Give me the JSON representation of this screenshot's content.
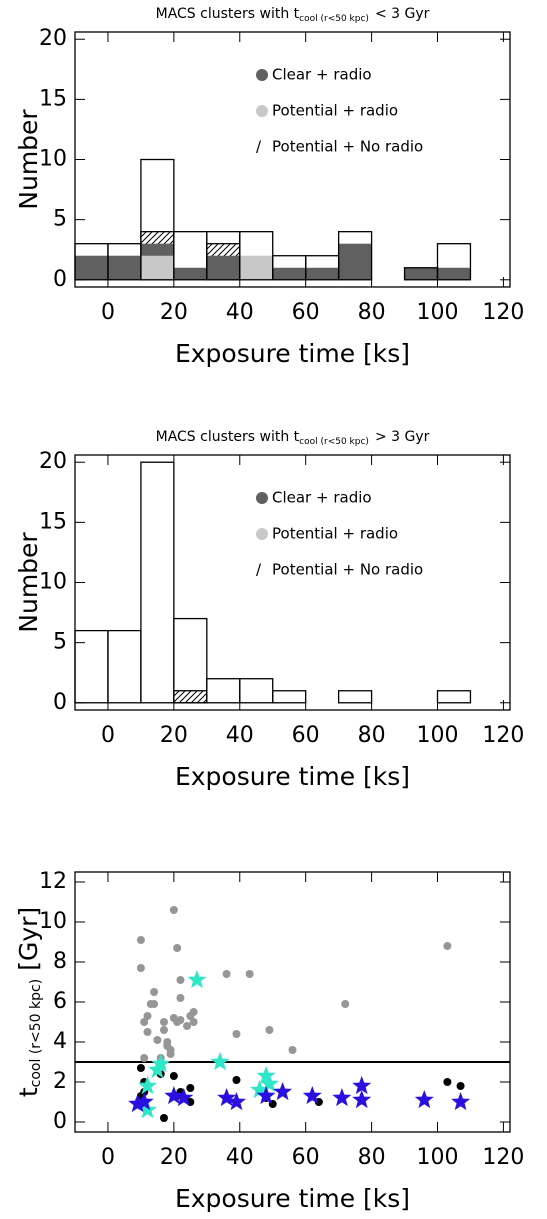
{
  "chart_data": [
    {
      "type": "histogram",
      "title": "MACS clusters with t",
      "title_sub": "cool (r<50 kpc)",
      "title_end": "< 3 Gyr",
      "xlabel": "Exposure time [ks]",
      "ylabel": "Number",
      "bins": [
        -10,
        0,
        10,
        20,
        30,
        40,
        50,
        60,
        70,
        80,
        90,
        100,
        110,
        120
      ],
      "series": [
        {
          "color": "none",
          "values": [
            3,
            3,
            10,
            4,
            4,
            4,
            2,
            2,
            4,
            0,
            1,
            3,
            0
          ]
        },
        {
          "name": "Clear + radio",
          "color": "#606060",
          "values": [
            2,
            2,
            3,
            1,
            2,
            0,
            1,
            1,
            3,
            0,
            1,
            1,
            0
          ]
        },
        {
          "name": "Potential + radio",
          "color": "#c8c8c8",
          "values": [
            0,
            0,
            2,
            0,
            0,
            2,
            0,
            0,
            0,
            0,
            0,
            0,
            0
          ]
        },
        {
          "name": "Potential + No radio",
          "marker": "/",
          "color": "hatch",
          "values": [
            0,
            0,
            4,
            0,
            3,
            0,
            0,
            0,
            0,
            0,
            0,
            0,
            0
          ]
        }
      ],
      "xlim": [
        -10,
        122
      ],
      "ylim": [
        -0.6,
        20.6
      ],
      "xticks": [
        0,
        20,
        40,
        60,
        80,
        100,
        120
      ],
      "yticks": [
        0,
        5,
        10,
        15,
        20
      ]
    },
    {
      "type": "histogram",
      "title": "MACS clusters with t",
      "title_sub": "cool (r<50 kpc)",
      "title_end": "> 3 Gyr",
      "xlabel": "Exposure time [ks]",
      "ylabel": "Number",
      "bins": [
        -10,
        0,
        10,
        20,
        30,
        40,
        50,
        60,
        70,
        80,
        90,
        100,
        110,
        120
      ],
      "series": [
        {
          "color": "none",
          "values": [
            6,
            6,
            20,
            7,
            2,
            2,
            1,
            0,
            1,
            0,
            0,
            1,
            0
          ]
        },
        {
          "name": "Clear + radio",
          "color": "#606060",
          "values": [
            0,
            0,
            0,
            0,
            0,
            0,
            0,
            0,
            0,
            0,
            0,
            0,
            0
          ]
        },
        {
          "name": "Potential + radio",
          "color": "#c8c8c8",
          "values": [
            0,
            0,
            0,
            0,
            0,
            0,
            0,
            0,
            0,
            0,
            0,
            0,
            0
          ]
        },
        {
          "name": "Potential + No radio",
          "marker": "/",
          "color": "hatch",
          "values": [
            0,
            0,
            0,
            1,
            0,
            0,
            0,
            0,
            0,
            0,
            0,
            0,
            0
          ]
        }
      ],
      "xlim": [
        -10,
        122
      ],
      "ylim": [
        -0.6,
        20.6
      ],
      "xticks": [
        0,
        20,
        40,
        60,
        80,
        100,
        120
      ],
      "yticks": [
        0,
        5,
        10,
        15,
        20
      ]
    },
    {
      "type": "scatter",
      "xlabel": "Exposure time [ks]",
      "ylabel": "t",
      "ylabel_sub": "cool (r<50 kpc)",
      "ylabel_end": "[Gyr]",
      "hline": 3,
      "series": [
        {
          "color": "#969696",
          "marker": "circle",
          "x": [
            10,
            10,
            11,
            12,
            12,
            11,
            13,
            14,
            14,
            15,
            16,
            17,
            17,
            18,
            18,
            19,
            19,
            20,
            20,
            21,
            21,
            22,
            22,
            22,
            24,
            25,
            26,
            26,
            36,
            39,
            43,
            49,
            56,
            72,
            103
          ],
          "values": [
            9.1,
            7.7,
            5.0,
            5.3,
            4.5,
            3.2,
            5.9,
            6.5,
            5.9,
            4.1,
            3.2,
            4.6,
            5.0,
            4.0,
            3.8,
            3.6,
            3.4,
            10.6,
            5.2,
            8.7,
            5.0,
            7.1,
            6.2,
            5.1,
            4.8,
            5.3,
            5.5,
            5.0,
            7.4,
            4.4,
            7.4,
            4.6,
            3.6,
            5.9,
            8.8
          ]
        },
        {
          "color": "#000000",
          "marker": "circle",
          "x": [
            10,
            10,
            11,
            11,
            11,
            16,
            17,
            20,
            21,
            22,
            25,
            25,
            39,
            48,
            50,
            64,
            103,
            107
          ],
          "values": [
            2.7,
            1.3,
            2.0,
            1.0,
            1.5,
            2.4,
            0.2,
            2.3,
            1.3,
            1.5,
            1.7,
            1.0,
            2.1,
            1.2,
            0.9,
            1.0,
            2.0,
            1.8
          ]
        },
        {
          "color": "#2ee6c8",
          "marker": "star",
          "x": [
            12,
            12,
            15,
            16,
            27,
            34,
            46,
            48,
            49
          ],
          "values": [
            1.8,
            0.6,
            2.6,
            2.9,
            7.1,
            3.0,
            1.6,
            2.3,
            1.9
          ]
        },
        {
          "color": "#2a10e0",
          "marker": "star",
          "x": [
            9,
            11,
            20,
            23,
            36,
            39,
            48,
            53,
            62,
            71,
            77,
            77,
            96,
            107
          ],
          "values": [
            0.9,
            1.0,
            1.3,
            1.2,
            1.2,
            1.0,
            1.3,
            1.5,
            1.3,
            1.2,
            1.8,
            1.1,
            1.1,
            1.0
          ]
        }
      ],
      "xlim": [
        -10,
        122
      ],
      "ylim": [
        -0.5,
        12.5
      ],
      "xticks": [
        0,
        20,
        40,
        60,
        80,
        100,
        120
      ],
      "yticks": [
        0,
        2,
        4,
        6,
        8,
        10,
        12
      ]
    }
  ]
}
